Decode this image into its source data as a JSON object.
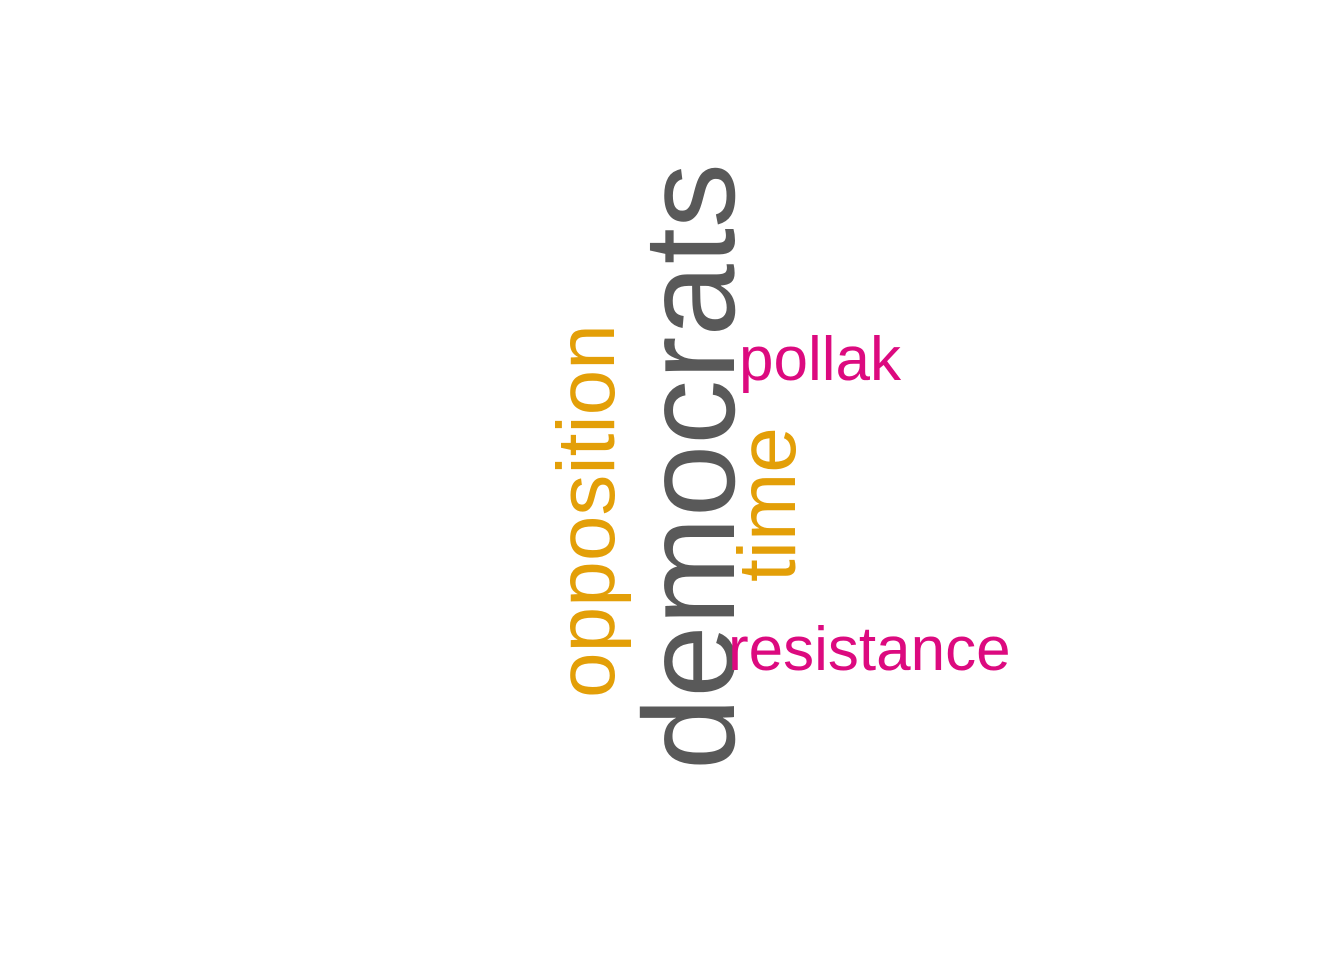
{
  "word_cloud": {
    "words": [
      {
        "text": "democrats",
        "color": "#595959",
        "orientation": "vertical"
      },
      {
        "text": "opposition",
        "color": "#e39f08",
        "orientation": "vertical"
      },
      {
        "text": "time",
        "color": "#e39f08",
        "orientation": "vertical"
      },
      {
        "text": "pollak",
        "color": "#dc0a7f",
        "orientation": "horizontal"
      },
      {
        "text": "resistance",
        "color": "#dc0a7f",
        "orientation": "horizontal"
      }
    ]
  }
}
